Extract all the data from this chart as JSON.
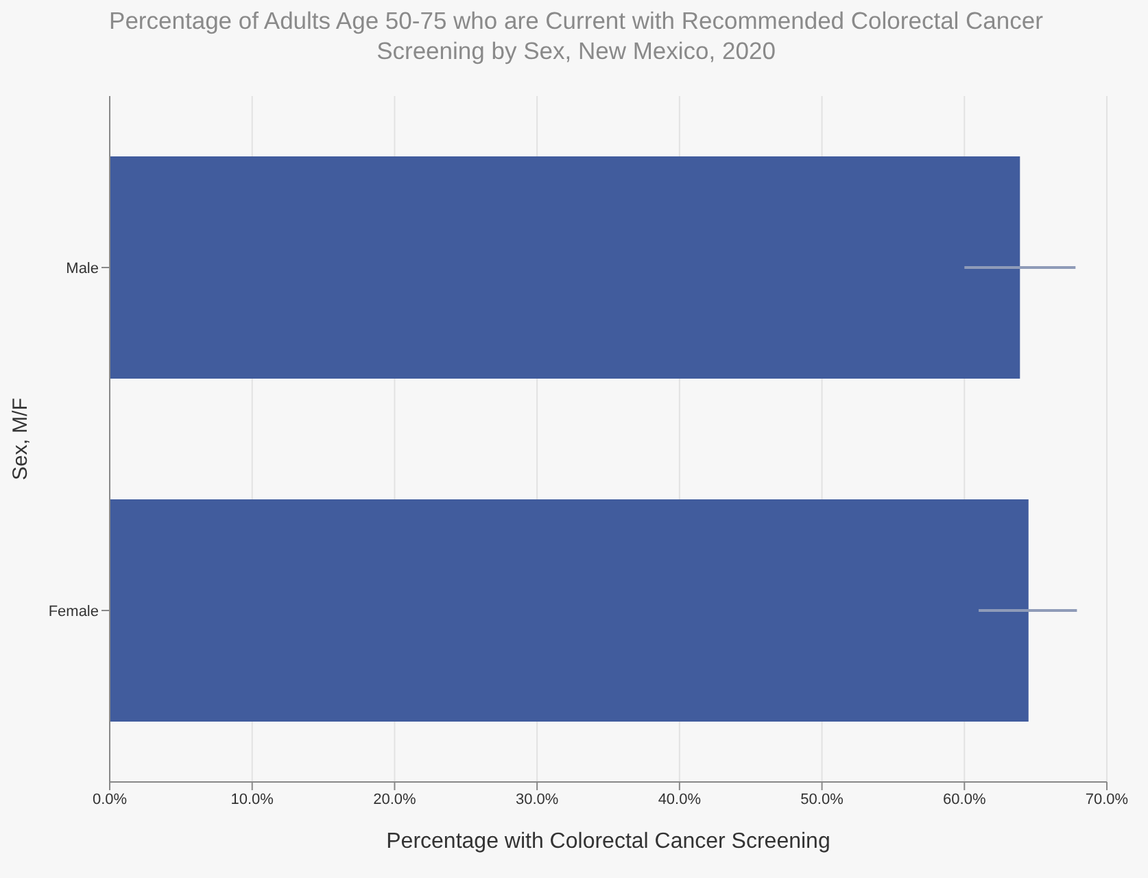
{
  "chart_data": {
    "type": "bar",
    "orientation": "horizontal",
    "title": "Percentage of Adults Age 50-75 who are Current with Recommended Colorectal Cancer Screening by Sex, New Mexico, 2020",
    "xlabel": "Percentage with Colorectal Cancer Screening",
    "ylabel": "Sex, M/F",
    "categories": [
      "Male",
      "Female"
    ],
    "series": [
      {
        "color": "#415c9d",
        "values": [
          63.9,
          64.5
        ],
        "errors": [
          [
            60.0,
            67.8
          ],
          [
            61.0,
            67.9
          ]
        ]
      }
    ],
    "xlim": [
      0,
      70
    ],
    "xticks": [
      {
        "value": 0,
        "label": "0.0%"
      },
      {
        "value": 10,
        "label": "10.0%"
      },
      {
        "value": 20,
        "label": "20.0%"
      },
      {
        "value": 30,
        "label": "30.0%"
      },
      {
        "value": 40,
        "label": "40.0%"
      },
      {
        "value": 50,
        "label": "50.0%"
      },
      {
        "value": 60,
        "label": "60.0%"
      },
      {
        "value": 70,
        "label": "70.0%"
      }
    ],
    "grid": "x",
    "legend": false
  }
}
